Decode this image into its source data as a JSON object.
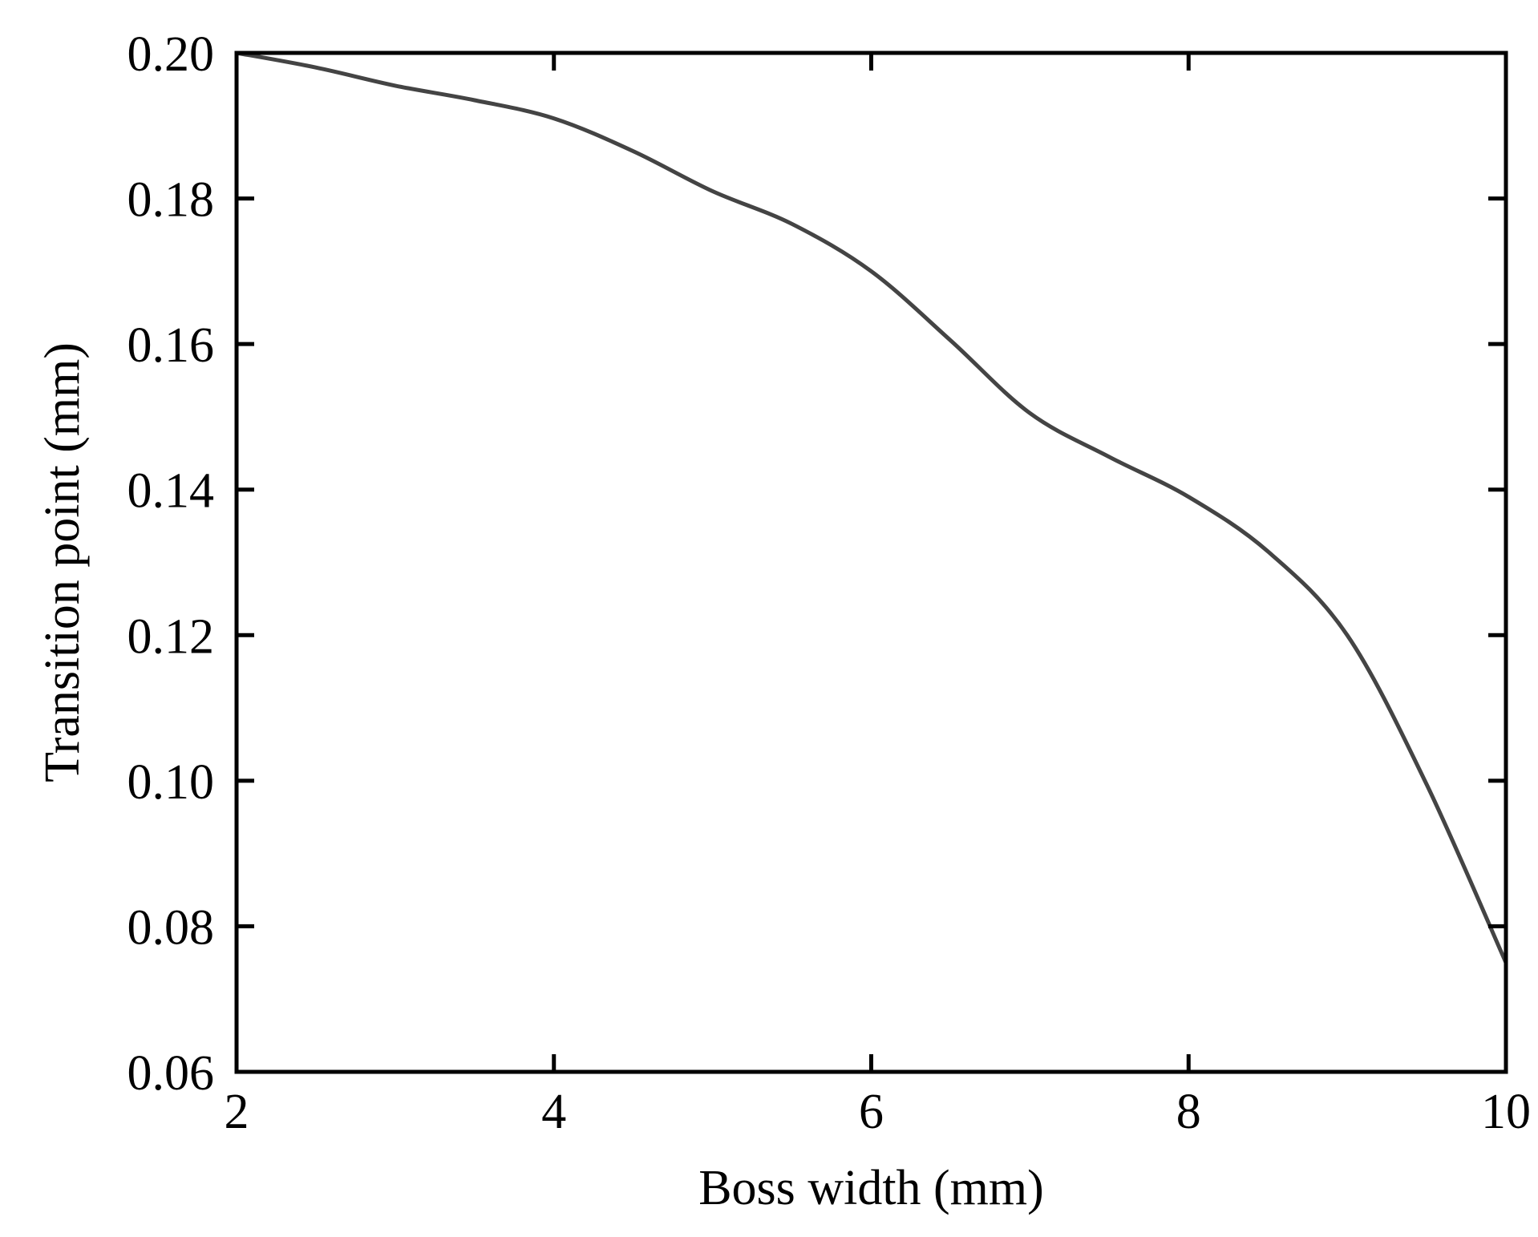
{
  "chart_data": {
    "type": "line",
    "title": "",
    "xlabel": "Boss width (mm)",
    "ylabel": "Transition point (mm)",
    "xlim": [
      2,
      10
    ],
    "ylim": [
      0.06,
      0.2
    ],
    "xticks": [
      2,
      4,
      6,
      8,
      10
    ],
    "xtick_labels": [
      "2",
      "4",
      "6",
      "8",
      "10"
    ],
    "yticks": [
      0.06,
      0.08,
      0.1,
      0.12,
      0.14,
      0.16,
      0.18,
      0.2
    ],
    "ytick_labels": [
      "0.06",
      "0.08",
      "0.10",
      "0.12",
      "0.14",
      "0.16",
      "0.18",
      "0.20"
    ],
    "grid": false,
    "legend": "none",
    "line_color": "#444444",
    "series": [
      {
        "x": [
          2.0,
          2.5,
          3.0,
          3.5,
          4.0,
          4.5,
          5.0,
          5.5,
          6.0,
          6.5,
          7.0,
          7.5,
          8.0,
          8.5,
          9.0,
          9.5,
          10.0
        ],
        "values": [
          0.2,
          0.198,
          0.1955,
          0.1935,
          0.191,
          0.1865,
          0.181,
          0.1765,
          0.17,
          0.1605,
          0.1505,
          0.1445,
          0.139,
          0.1315,
          0.12,
          0.0995,
          0.075
        ]
      }
    ]
  }
}
